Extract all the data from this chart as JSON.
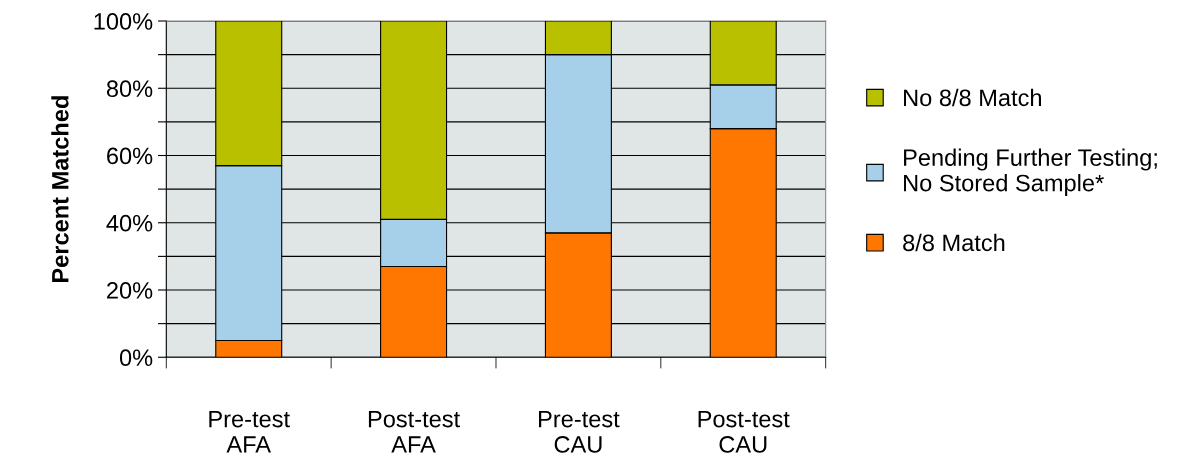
{
  "chart_data": {
    "type": "bar",
    "stacked": true,
    "ylabel": "Percent Matched",
    "categories": [
      "Pre-test\nAFA",
      "Post-test\nAFA",
      "Pre-test\nCAU",
      "Post-test\nCAU"
    ],
    "series": [
      {
        "name": "8/8 Match",
        "color": "#ff7700",
        "values": [
          5,
          27,
          37,
          68
        ]
      },
      {
        "name": "Pending Further Testing;\nNo Stored Sample*",
        "color": "#a6cfea",
        "values": [
          52,
          14,
          53,
          13
        ]
      },
      {
        "name": "No 8/8 Match",
        "color": "#b8c000",
        "values": [
          43,
          59,
          10,
          19
        ]
      }
    ],
    "ylim": [
      0,
      100
    ],
    "yticks": [
      {
        "value": 0,
        "label": "0%"
      },
      {
        "value": 10,
        "label": null
      },
      {
        "value": 20,
        "label": "20%"
      },
      {
        "value": 30,
        "label": null
      },
      {
        "value": 40,
        "label": "40%"
      },
      {
        "value": 50,
        "label": null
      },
      {
        "value": 60,
        "label": "60%"
      },
      {
        "value": 70,
        "label": null
      },
      {
        "value": 80,
        "label": "80%"
      },
      {
        "value": 90,
        "label": null
      },
      {
        "value": 100,
        "label": "100%"
      }
    ],
    "grid": "y",
    "legend": "right"
  }
}
